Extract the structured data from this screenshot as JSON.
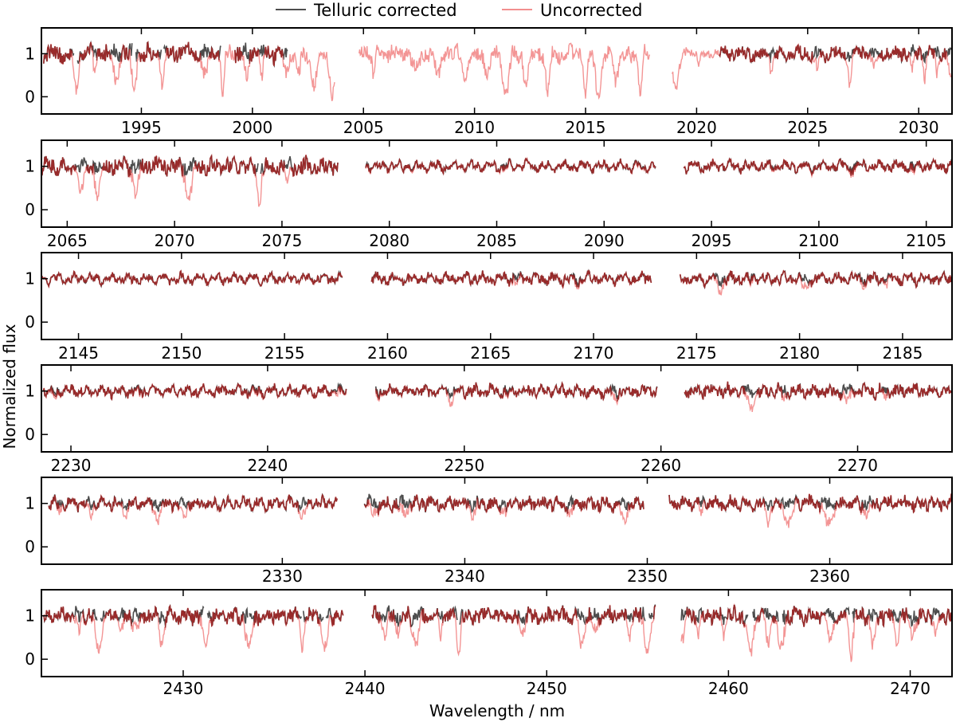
{
  "chart_data": {
    "type": "line",
    "xlabel": "Wavelength / nm",
    "ylabel": "Normalized flux",
    "legend": {
      "placement": "top-center",
      "entries": [
        "Telluric corrected",
        "Uncorrected"
      ]
    },
    "colors": {
      "corrected": "#4d4d4d",
      "uncorrected": "#f28f8f",
      "overlap": "#8b1a1a"
    },
    "grid": false,
    "series": [
      {
        "name": "Telluric corrected",
        "style": "dark grey line, plotted mostly underneath; missing where telluric absorption is too deep"
      },
      {
        "name": "Uncorrected",
        "style": "light red line"
      }
    ],
    "panels": [
      {
        "xlim": [
          1990.5,
          2031.5
        ],
        "ylim": [
          -0.4,
          1.6
        ],
        "yticks": [
          0,
          1
        ],
        "xticks": [
          1995,
          2000,
          2005,
          2010,
          2015,
          2020,
          2025,
          2030
        ],
        "segments": [
          {
            "x": [
              1990.6,
              2003.7
            ],
            "corrected_until": 1998.6,
            "corrected_patches": [
              [
                1999.2,
                2001.6
              ]
            ],
            "telluric": 0.8
          },
          {
            "x": [
              2004.8,
              2017.9
            ],
            "corrected_until": null,
            "telluric": 0.8
          },
          {
            "x": [
              2018.9,
              2031.5
            ],
            "corrected_from": 2021.0,
            "telluric": 0.55
          }
        ]
      },
      {
        "xlim": [
          2063.8,
          2106.2
        ],
        "ylim": [
          -0.4,
          1.6
        ],
        "yticks": [
          0,
          1
        ],
        "xticks": [
          2065,
          2070,
          2075,
          2080,
          2085,
          2090,
          2095,
          2100,
          2105
        ],
        "segments": [
          {
            "x": [
              2063.8,
              2077.6
            ],
            "telluric": 0.7
          },
          {
            "x": [
              2078.9,
              2092.4
            ],
            "telluric": 0.05
          },
          {
            "x": [
              2093.7,
              2106.2
            ],
            "telluric": 0.1
          }
        ]
      },
      {
        "xlim": [
          2143.2,
          2187.4
        ],
        "ylim": [
          -0.4,
          1.6
        ],
        "yticks": [
          0,
          1
        ],
        "xticks": [
          2145,
          2150,
          2155,
          2160,
          2165,
          2170,
          2175,
          2180,
          2185
        ],
        "segments": [
          {
            "x": [
              2143.2,
              2157.8
            ],
            "telluric": 0.0
          },
          {
            "x": [
              2159.2,
              2172.8
            ],
            "telluric": 0.15
          },
          {
            "x": [
              2174.2,
              2187.4
            ],
            "telluric": 0.2
          }
        ]
      },
      {
        "xlim": [
          2228.5,
          2274.8
        ],
        "ylim": [
          -0.4,
          1.6
        ],
        "yticks": [
          0,
          1
        ],
        "xticks": [
          2230,
          2240,
          2250,
          2260,
          2270
        ],
        "segments": [
          {
            "x": [
              2228.6,
              2244.0
            ],
            "telluric": 0.1
          },
          {
            "x": [
              2245.5,
              2259.8
            ],
            "telluric": 0.2
          },
          {
            "x": [
              2261.2,
              2274.8
            ],
            "telluric": 0.35
          }
        ]
      },
      {
        "xlim": [
          2316.8,
          2366.7
        ],
        "ylim": [
          -0.4,
          1.6
        ],
        "yticks": [
          0,
          1
        ],
        "xticks": [
          2330,
          2340,
          2350,
          2360
        ],
        "segments": [
          {
            "x": [
              2317.2,
              2333.0
            ],
            "telluric": 0.25
          },
          {
            "x": [
              2334.5,
              2349.8
            ],
            "telluric": 0.45
          },
          {
            "x": [
              2351.2,
              2366.7
            ],
            "telluric": 0.4
          }
        ]
      },
      {
        "xlim": [
          2422.2,
          2472.3
        ],
        "ylim": [
          -0.4,
          1.6
        ],
        "yticks": [
          0,
          1
        ],
        "xticks": [
          2430,
          2440,
          2450,
          2460,
          2470
        ],
        "segments": [
          {
            "x": [
              2422.3,
              2438.8
            ],
            "telluric": 0.6
          },
          {
            "x": [
              2440.4,
              2456.0
            ],
            "telluric": 0.7
          },
          {
            "x": [
              2457.4,
              2472.3
            ],
            "telluric": 0.7
          }
        ]
      }
    ]
  }
}
